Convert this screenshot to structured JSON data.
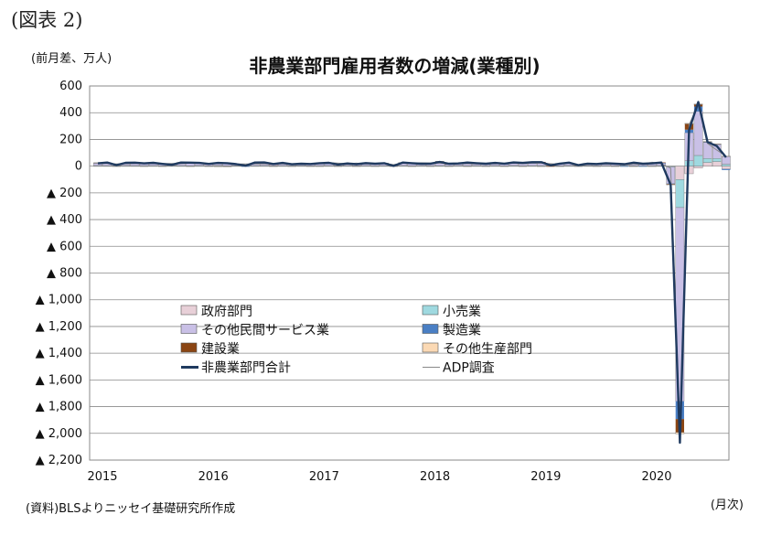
{
  "figure_label": "(図表 2)",
  "unit_label": "(前月差、万人)",
  "source_note": "(資料)BLSよりニッセイ基礎研究所作成",
  "x_unit": "(月次)",
  "colors": {
    "government": "#e8d0d8",
    "retail": "#9fd9e0",
    "other_services": "#c9c0e6",
    "manufacturing": "#4a7fc4",
    "construction": "#8b4513",
    "other_goods": "#fbd9b4",
    "nonfarm_total": "#1f3a5f",
    "adp": "#888888"
  },
  "chart_data": {
    "type": "bar",
    "title": "非農業部門雇用者数の増減(業種別)",
    "ylabel": "(前月差、万人)",
    "xlabel": "(月次)",
    "ylim": [
      -2200,
      600
    ],
    "y_ticks": [
      600,
      400,
      200,
      0,
      -200,
      -400,
      -600,
      -800,
      -1000,
      -1200,
      -1400,
      -1600,
      -1800,
      -2000,
      -2200
    ],
    "y_tick_labels": [
      "600",
      "400",
      "200",
      "0",
      "▲ 200",
      "▲ 400",
      "▲ 600",
      "▲ 800",
      "▲ 1,000",
      "▲ 1,200",
      "▲ 1,400",
      "▲ 1,600",
      "▲ 1,800",
      "▲ 2,000",
      "▲ 2,200"
    ],
    "x_ticks": [
      "2015",
      "2016",
      "2017",
      "2018",
      "2019",
      "2020"
    ],
    "x_start": "2015-01",
    "grid": true,
    "legend": {
      "placement": "center-left",
      "entries": [
        {
          "key": "government",
          "label": "政府部門",
          "kind": "bar"
        },
        {
          "key": "retail",
          "label": "小売業",
          "kind": "bar"
        },
        {
          "key": "other_services",
          "label": "その他民間サービス業",
          "kind": "bar"
        },
        {
          "key": "manufacturing",
          "label": "製造業",
          "kind": "bar"
        },
        {
          "key": "construction",
          "label": "建設業",
          "kind": "bar"
        },
        {
          "key": "other_goods",
          "label": "その他生産部門",
          "kind": "bar"
        },
        {
          "key": "nonfarm_total",
          "label": "非農業部門合計",
          "kind": "line-thick"
        },
        {
          "key": "adp",
          "label": "ADP調査",
          "kind": "line-thin"
        }
      ]
    },
    "months": [
      "2015-01",
      "2015-02",
      "2015-03",
      "2015-04",
      "2015-05",
      "2015-06",
      "2015-07",
      "2015-08",
      "2015-09",
      "2015-10",
      "2015-11",
      "2015-12",
      "2016-01",
      "2016-02",
      "2016-03",
      "2016-04",
      "2016-05",
      "2016-06",
      "2016-07",
      "2016-08",
      "2016-09",
      "2016-10",
      "2016-11",
      "2016-12",
      "2017-01",
      "2017-02",
      "2017-03",
      "2017-04",
      "2017-05",
      "2017-06",
      "2017-07",
      "2017-08",
      "2017-09",
      "2017-10",
      "2017-11",
      "2017-12",
      "2018-01",
      "2018-02",
      "2018-03",
      "2018-04",
      "2018-05",
      "2018-06",
      "2018-07",
      "2018-08",
      "2018-09",
      "2018-10",
      "2018-11",
      "2018-12",
      "2019-01",
      "2019-02",
      "2019-03",
      "2019-04",
      "2019-05",
      "2019-06",
      "2019-07",
      "2019-08",
      "2019-09",
      "2019-10",
      "2019-11",
      "2019-12",
      "2020-01",
      "2020-02",
      "2020-03",
      "2020-04",
      "2020-05",
      "2020-06",
      "2020-07",
      "2020-08",
      "2020-09"
    ],
    "series": [
      {
        "name": "政府部門",
        "key": "government",
        "values": [
          2,
          2,
          1,
          2,
          2,
          1,
          2,
          1,
          2,
          2,
          1,
          2,
          1,
          2,
          1,
          2,
          1,
          2,
          2,
          1,
          2,
          1,
          2,
          1,
          1,
          2,
          1,
          2,
          1,
          2,
          1,
          2,
          1,
          2,
          1,
          2,
          1,
          2,
          1,
          2,
          1,
          2,
          1,
          2,
          1,
          2,
          1,
          2,
          1,
          2,
          1,
          2,
          1,
          2,
          1,
          2,
          1,
          2,
          1,
          2,
          1,
          2,
          -1,
          -100,
          -57,
          -14,
          27,
          34,
          -22
        ]
      },
      {
        "name": "小売業",
        "key": "retail",
        "values": [
          3,
          2,
          2,
          3,
          2,
          3,
          2,
          2,
          3,
          2,
          2,
          3,
          2,
          3,
          2,
          2,
          3,
          2,
          3,
          2,
          2,
          3,
          2,
          2,
          3,
          2,
          2,
          3,
          2,
          2,
          3,
          2,
          2,
          3,
          2,
          2,
          3,
          2,
          2,
          3,
          2,
          2,
          3,
          2,
          2,
          3,
          2,
          2,
          3,
          2,
          2,
          3,
          2,
          2,
          3,
          2,
          2,
          3,
          2,
          2,
          3,
          2,
          -5,
          -210,
          40,
          80,
          30,
          23,
          14
        ]
      },
      {
        "name": "その他民間サービス業",
        "key": "other_services",
        "values": [
          17,
          18,
          12,
          16,
          20,
          15,
          17,
          12,
          10,
          22,
          18,
          17,
          10,
          17,
          14,
          10,
          2,
          17,
          18,
          10,
          16,
          10,
          12,
          11,
          14,
          15,
          8,
          12,
          10,
          15,
          13,
          14,
          2,
          18,
          14,
          10,
          12,
          23,
          10,
          12,
          16,
          15,
          10,
          15,
          12,
          16,
          15,
          17,
          22,
          2,
          15,
          16,
          6,
          13,
          12,
          14,
          13,
          12,
          18,
          12,
          17,
          20,
          -125,
          -1450,
          210,
          330,
          120,
          105,
          60
        ]
      },
      {
        "name": "製造業",
        "key": "manufacturing",
        "values": [
          1,
          1,
          0,
          1,
          1,
          0,
          1,
          1,
          0,
          1,
          0,
          1,
          0,
          0,
          -1,
          0,
          -1,
          1,
          0,
          0,
          0,
          0,
          0,
          0,
          1,
          1,
          1,
          1,
          0,
          1,
          1,
          2,
          1,
          2,
          2,
          2,
          2,
          3,
          2,
          2,
          2,
          3,
          2,
          2,
          1,
          2,
          3,
          2,
          1,
          0,
          0,
          0,
          0,
          1,
          0,
          0,
          0,
          -4,
          5,
          -1,
          0,
          1,
          -2,
          -133,
          23,
          36,
          4,
          3,
          -7
        ]
      },
      {
        "name": "建設業",
        "key": "construction",
        "values": [
          2,
          2,
          1,
          3,
          2,
          1,
          2,
          1,
          1,
          2,
          3,
          2,
          2,
          2,
          3,
          1,
          0,
          2,
          1,
          1,
          2,
          2,
          1,
          2,
          3,
          3,
          1,
          1,
          1,
          2,
          1,
          2,
          1,
          1,
          2,
          3,
          1,
          6,
          2,
          2,
          3,
          2,
          2,
          2,
          2,
          2,
          2,
          3,
          5,
          -1,
          2,
          2,
          1,
          2,
          1,
          2,
          2,
          1,
          1,
          2,
          5,
          3,
          -3,
          -100,
          45,
          16,
          2,
          1,
          0
        ]
      },
      {
        "name": "その他生産部門",
        "key": "other_goods",
        "values": [
          1,
          0,
          1,
          0,
          0,
          1,
          0,
          0,
          1,
          0,
          0,
          1,
          0,
          -1,
          -1,
          0,
          0,
          0,
          0,
          0,
          0,
          0,
          0,
          0,
          0,
          1,
          0,
          1,
          0,
          1,
          0,
          1,
          0,
          1,
          0,
          1,
          0,
          1,
          0,
          1,
          0,
          1,
          0,
          1,
          0,
          1,
          0,
          1,
          0,
          0,
          1,
          0,
          0,
          1,
          0,
          0,
          1,
          0,
          0,
          1,
          0,
          0,
          -1,
          -10,
          2,
          3,
          2,
          1,
          1
        ]
      },
      {
        "name": "非農業部門合計",
        "key": "nonfarm_total",
        "values": [
          21,
          27,
          8,
          25,
          26,
          21,
          25,
          17,
          10,
          27,
          26,
          24,
          17,
          24,
          22,
          15,
          4,
          27,
          28,
          16,
          24,
          14,
          18,
          16,
          22,
          25,
          12,
          20,
          15,
          23,
          19,
          22,
          2,
          27,
          22,
          18,
          19,
          32,
          18,
          20,
          27,
          22,
          18,
          24,
          19,
          28,
          24,
          30,
          30,
          6,
          19,
          26,
          8,
          19,
          16,
          22,
          19,
          15,
          26,
          18,
          21,
          27,
          -140,
          -2070,
          270,
          480,
          180,
          150,
          66
        ]
      },
      {
        "name": "ADP調査",
        "key": "adp",
        "values": [
          22,
          20,
          17,
          18,
          20,
          22,
          18,
          19,
          20,
          18,
          22,
          24,
          19,
          18,
          19,
          17,
          16,
          17,
          18,
          17,
          16,
          15,
          21,
          15,
          24,
          27,
          22,
          18,
          22,
          16,
          18,
          22,
          11,
          23,
          19,
          25,
          23,
          22,
          19,
          18,
          18,
          17,
          20,
          17,
          22,
          22,
          18,
          23,
          22,
          18,
          14,
          24,
          3,
          12,
          15,
          17,
          13,
          12,
          13,
          18,
          29,
          18,
          -15,
          -2000,
          310,
          460,
          170,
          120,
          75
        ]
      }
    ]
  }
}
